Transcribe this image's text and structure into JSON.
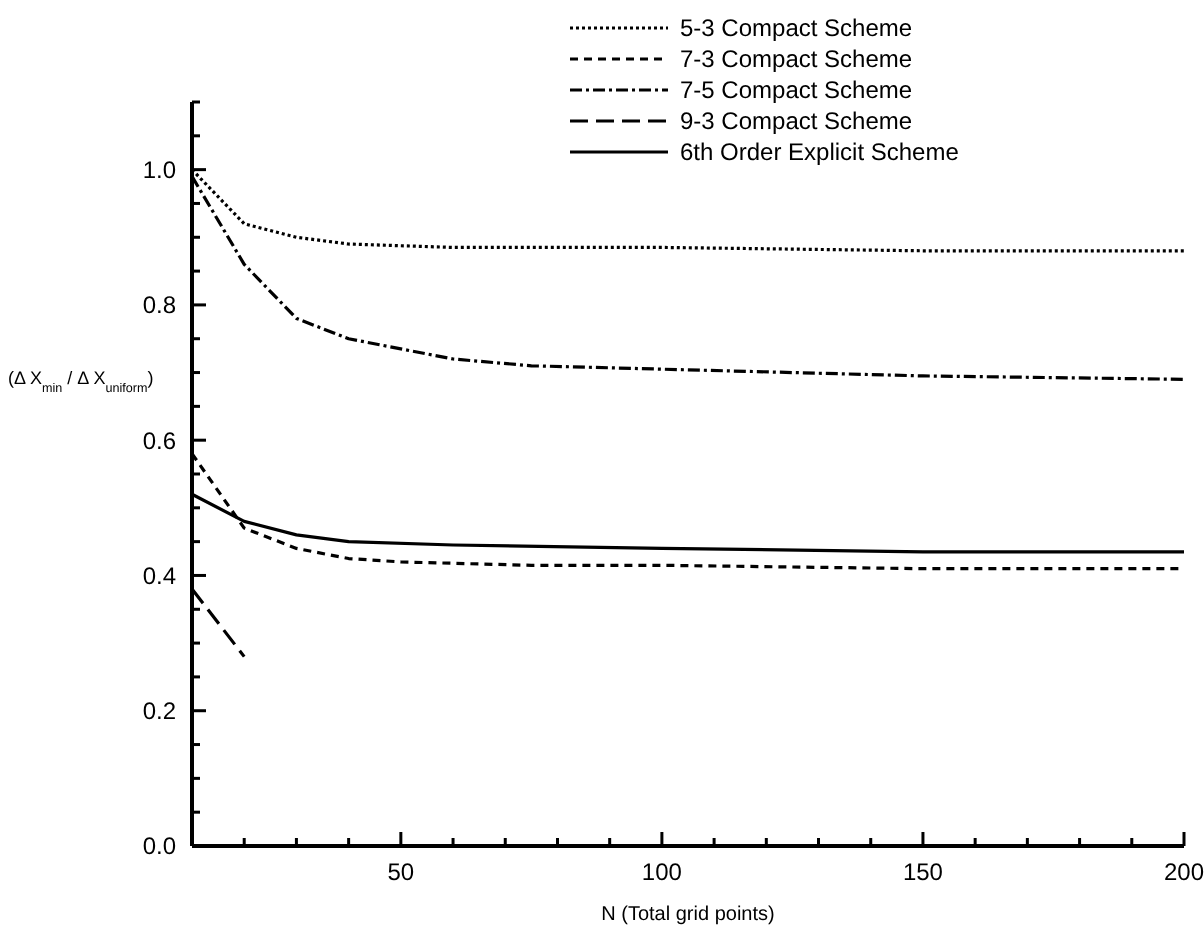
{
  "chart_data": {
    "type": "line",
    "xlabel": "N (Total grid points)",
    "ylabel": "(Δ X$_{min}$ / Δ X$_{uniform}$)",
    "xlim": [
      10,
      200
    ],
    "ylim": [
      0,
      1.1
    ],
    "xticks": [
      {
        "value": 20,
        "label": null
      },
      {
        "value": 30,
        "label": null
      },
      {
        "value": 40,
        "label": null
      },
      50,
      {
        "value": 60,
        "label": null
      },
      {
        "value": 70,
        "label": null
      },
      {
        "value": 80,
        "label": null
      },
      {
        "value": 90,
        "label": null
      },
      100,
      {
        "value": 110,
        "label": null
      },
      {
        "value": 120,
        "label": null
      },
      {
        "value": 130,
        "label": null
      },
      {
        "value": 140,
        "label": null
      },
      150,
      {
        "value": 160,
        "label": null
      },
      {
        "value": 170,
        "label": null
      },
      {
        "value": 180,
        "label": null
      },
      {
        "value": 190,
        "label": null
      },
      200
    ],
    "yticks": [
      {
        "value": 0,
        "label": "0.0"
      },
      {
        "value": 0.05,
        "label": null
      },
      {
        "value": 0.1,
        "label": null
      },
      {
        "value": 0.15,
        "label": null
      },
      0.2,
      {
        "value": 0.25,
        "label": null
      },
      {
        "value": 0.3,
        "label": null
      },
      {
        "value": 0.35,
        "label": null
      },
      0.4,
      {
        "value": 0.45,
        "label": null
      },
      {
        "value": 0.5,
        "label": null
      },
      {
        "value": 0.55,
        "label": null
      },
      0.6,
      {
        "value": 0.65,
        "label": null
      },
      {
        "value": 0.7,
        "label": null
      },
      {
        "value": 0.75,
        "label": null
      },
      0.8,
      {
        "value": 0.85,
        "label": null
      },
      {
        "value": 0.9,
        "label": null
      },
      {
        "value": 0.95,
        "label": null
      },
      {
        "value": 1,
        "label": "1.0"
      },
      {
        "value": 1.05,
        "label": null
      },
      {
        "value": 1.1,
        "label": null
      }
    ],
    "grid": false,
    "legend": "top right",
    "series": [
      {
        "name": "5-3 Compact Scheme",
        "color": "#000000",
        "line_style": "dotted",
        "x": [
          10,
          20,
          30,
          40,
          60,
          100,
          150,
          200
        ],
        "values": [
          1.0,
          0.92,
          0.9,
          0.89,
          0.885,
          0.885,
          0.88,
          0.88
        ]
      },
      {
        "name": "7-3 Compact Scheme",
        "color": "#000000",
        "line_style": "dashed",
        "x": [
          10,
          20,
          30,
          40,
          50,
          75,
          100,
          150,
          200
        ],
        "values": [
          0.58,
          0.47,
          0.44,
          0.425,
          0.42,
          0.415,
          0.415,
          0.41,
          0.41
        ]
      },
      {
        "name": "7-5 Compact Scheme",
        "color": "#000000",
        "line_style": "dashdot",
        "x": [
          10,
          20,
          30,
          40,
          50,
          60,
          75,
          100,
          125,
          150,
          200
        ],
        "values": [
          0.99,
          0.86,
          0.78,
          0.75,
          0.735,
          0.72,
          0.71,
          0.705,
          0.7,
          0.695,
          0.69
        ]
      },
      {
        "name": "9-3 Compact Scheme",
        "color": "#000000",
        "line_style": "longdash",
        "x": [
          10,
          15,
          20
        ],
        "values": [
          0.38,
          0.33,
          0.28
        ]
      },
      {
        "name": "6th Order Explicit Scheme",
        "color": "#000000",
        "line_style": "solid",
        "x": [
          10,
          20,
          30,
          40,
          60,
          100,
          150,
          200
        ],
        "values": [
          0.52,
          0.48,
          0.46,
          0.45,
          0.445,
          0.44,
          0.435,
          0.435
        ]
      }
    ]
  }
}
